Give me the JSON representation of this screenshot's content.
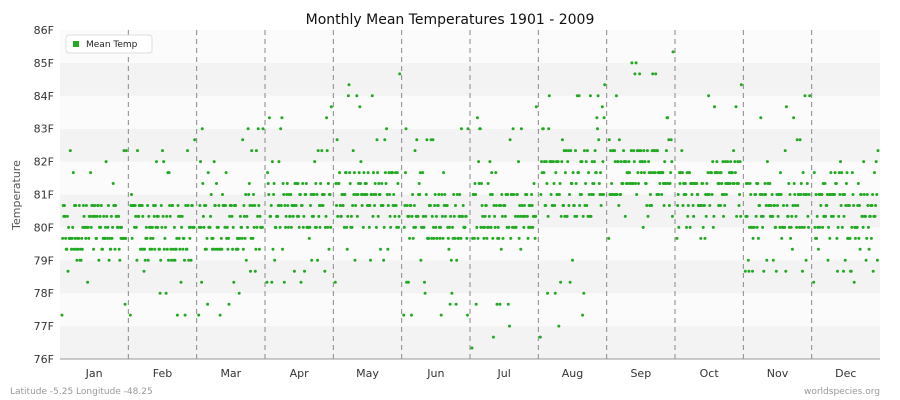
{
  "chart_data": {
    "type": "scatter",
    "title": "Monthly Mean Temperatures 1901 - 2009",
    "xlabel": "",
    "ylabel": "Temperature",
    "categories": [
      "Jan",
      "Feb",
      "Mar",
      "Apr",
      "May",
      "Jun",
      "Jul",
      "Aug",
      "Sep",
      "Oct",
      "Nov",
      "Dec"
    ],
    "y_ticks": [
      "76F",
      "77F",
      "78F",
      "79F",
      "80F",
      "81F",
      "82F",
      "83F",
      "84F",
      "85F",
      "86F"
    ],
    "ylim": [
      76,
      86
    ],
    "grid": "horizontal bands, dashed vertical month separators",
    "legend": {
      "position": "top-left",
      "entries": [
        "Mean Temp"
      ]
    },
    "series": [
      {
        "name": "Mean Temp",
        "color": "#22aa22",
        "years": [
          1901,
          2009
        ],
        "monthly_summary": [
          {
            "month": "Jan",
            "min": 77.2,
            "typical_low": 79.0,
            "typical_high": 80.8,
            "max": 82.4
          },
          {
            "month": "Feb",
            "min": 77.2,
            "typical_low": 79.0,
            "typical_high": 80.8,
            "max": 82.8
          },
          {
            "month": "Mar",
            "min": 77.2,
            "typical_low": 79.2,
            "typical_high": 81.0,
            "max": 83.1
          },
          {
            "month": "Apr",
            "min": 78.3,
            "typical_low": 79.8,
            "typical_high": 81.5,
            "max": 83.8
          },
          {
            "month": "May",
            "min": 78.3,
            "typical_low": 80.0,
            "typical_high": 81.8,
            "max": 84.6
          },
          {
            "month": "Jun",
            "min": 77.2,
            "typical_low": 79.6,
            "typical_high": 81.2,
            "max": 83.1
          },
          {
            "month": "Jul",
            "min": 76.3,
            "typical_low": 79.6,
            "typical_high": 81.3,
            "max": 83.5
          },
          {
            "month": "Aug",
            "min": 76.8,
            "typical_low": 80.4,
            "typical_high": 82.4,
            "max": 84.3
          },
          {
            "month": "Sep",
            "min": 79.8,
            "typical_low": 80.9,
            "typical_high": 82.6,
            "max": 85.2
          },
          {
            "month": "Oct",
            "min": 79.5,
            "typical_low": 80.4,
            "typical_high": 82.0,
            "max": 84.2
          },
          {
            "month": "Nov",
            "min": 78.6,
            "typical_low": 79.8,
            "typical_high": 81.3,
            "max": 83.9
          },
          {
            "month": "Dec",
            "min": 78.4,
            "typical_low": 79.6,
            "typical_high": 81.2,
            "max": 82.2
          }
        ]
      }
    ],
    "footer_left": "Latitude -5.25 Longitude -48.25",
    "footer_right": "worldspecies.org"
  }
}
